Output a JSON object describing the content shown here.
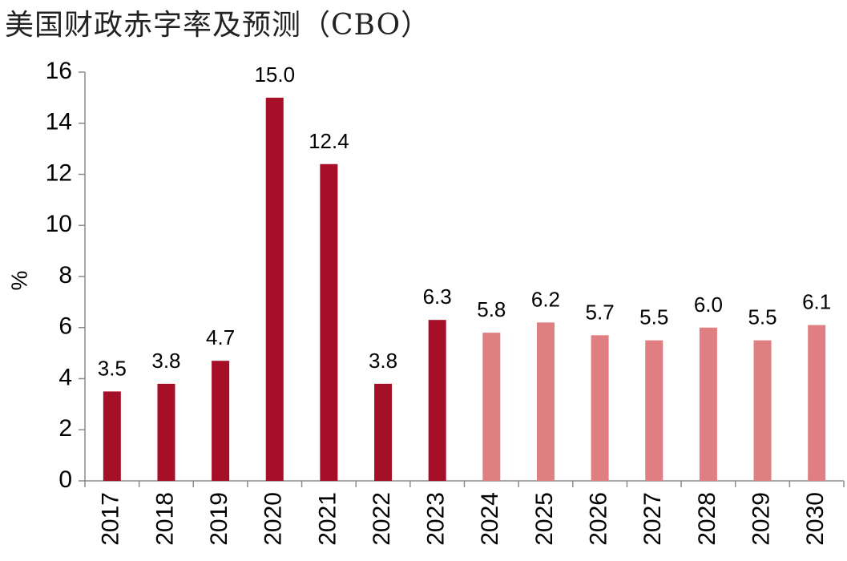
{
  "chart_data": {
    "type": "bar",
    "title": "美国财政赤字率及预测（CBO）",
    "ylabel": "%",
    "xlabel": "",
    "ylim": [
      0,
      16
    ],
    "yticks": [
      0,
      2,
      4,
      6,
      8,
      10,
      12,
      14,
      16
    ],
    "grid": false,
    "categories": [
      "2017",
      "2018",
      "2019",
      "2020",
      "2021",
      "2022",
      "2023",
      "2024",
      "2025",
      "2026",
      "2027",
      "2028",
      "2029",
      "2030"
    ],
    "values": [
      3.5,
      3.8,
      4.7,
      15.0,
      12.4,
      3.8,
      6.3,
      5.8,
      6.2,
      5.7,
      5.5,
      6.0,
      5.5,
      6.1
    ],
    "data_labels": [
      "3.5",
      "3.8",
      "4.7",
      "15.0",
      "12.4",
      "3.8",
      "6.3",
      "5.8",
      "6.2",
      "5.7",
      "5.5",
      "6.0",
      "5.5",
      "6.1"
    ],
    "bar_colors": [
      "#A50F28",
      "#A50F28",
      "#A50F28",
      "#A50F28",
      "#A50F28",
      "#A50F28",
      "#A50F28",
      "#E07F82",
      "#E07F82",
      "#E07F82",
      "#E07F82",
      "#E07F82",
      "#E07F82",
      "#E07F82"
    ]
  }
}
